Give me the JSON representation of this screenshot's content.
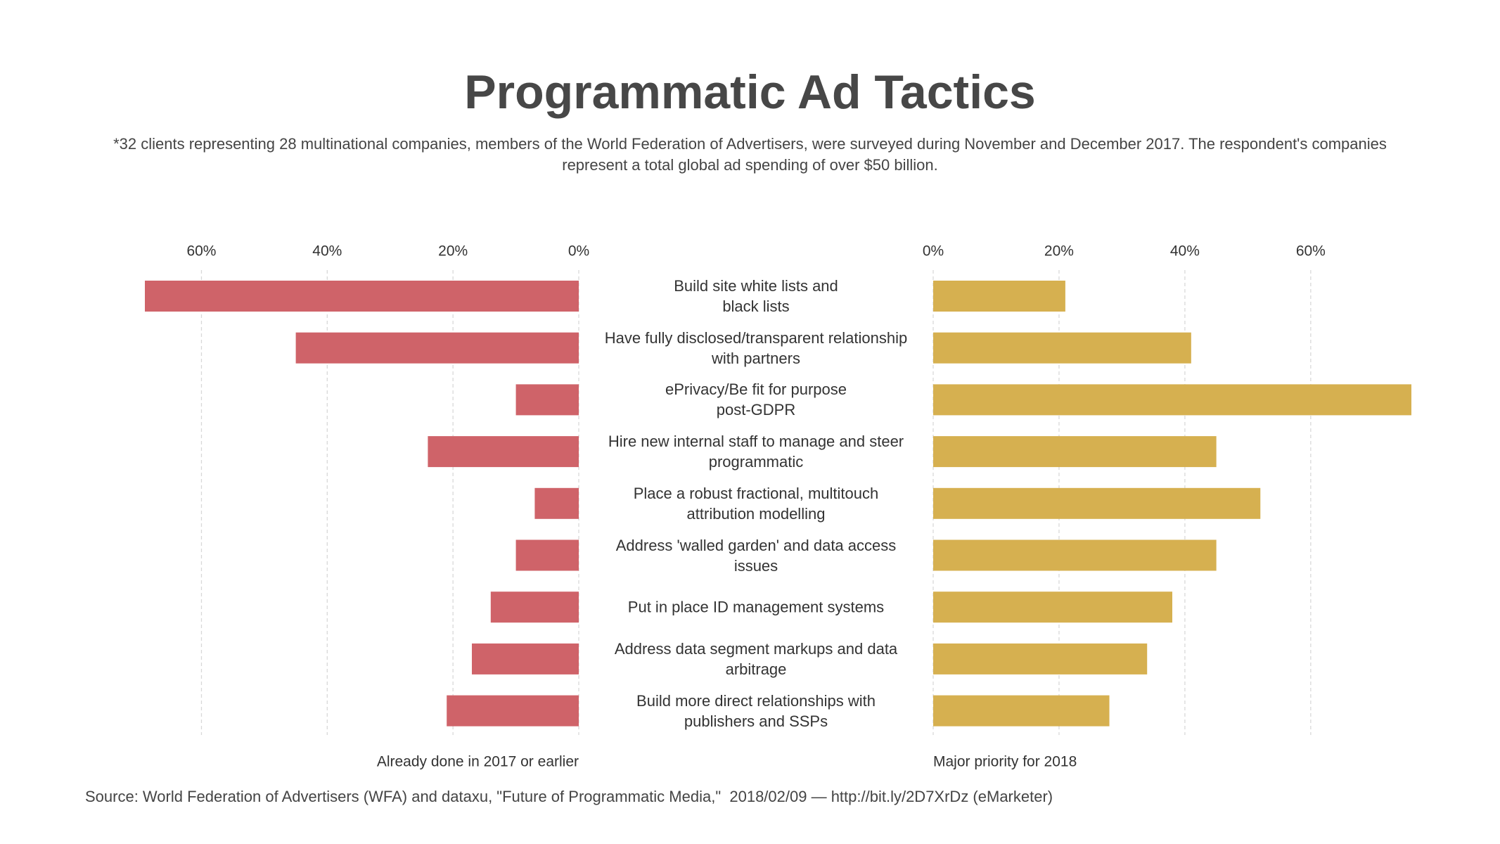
{
  "chart_data": {
    "type": "butterfly",
    "title": "Programmatic Ad Tactics",
    "subtitle": "*32 clients representing 28 multinational companies, members of the World Federation of Advertisers, were surveyed during November and December 2017. The respondent's companies represent a total global ad spending of over $50 billion.",
    "source": "Source: World Federation of Advertisers (WFA) and dataxu, \"Future of Programmatic Media,\"  2018/02/09 — http://bit.ly/2D7XrDz (eMarketer)",
    "categories": [
      "Build site white lists and\nblack lists",
      "Have fully disclosed/transparent relationship\nwith partners",
      "ePrivacy/Be fit for purpose\npost-GDPR",
      "Hire new internal staff to manage and steer\nprogrammatic",
      "Place a robust fractional, multitouch\nattribution modelling",
      "Address 'walled garden' and data access\nissues",
      "Put in place ID management systems",
      "Address data segment markups and data\narbitrage",
      "Build more direct relationships with\npublishers and SSPs"
    ],
    "grid": true,
    "series": [
      {
        "name": "Already done in 2017 or earlier",
        "color": "#cf6369",
        "values": [
          69,
          45,
          10,
          24,
          7,
          10,
          14,
          17,
          21
        ],
        "xlim": [
          0,
          69
        ],
        "xticks": [
          {
            "value": 0,
            "label": "0%"
          },
          {
            "value": 20,
            "label": "20%"
          },
          {
            "value": 40,
            "label": "40%"
          },
          {
            "value": 60,
            "label": "60%"
          }
        ]
      },
      {
        "name": "Major priority for 2018",
        "color": "#d6b050",
        "values": [
          21,
          41,
          76,
          45,
          52,
          45,
          38,
          34,
          28
        ],
        "xlim": [
          0,
          76
        ],
        "xticks": [
          {
            "value": 0,
            "label": "0%"
          },
          {
            "value": 20,
            "label": "20%"
          },
          {
            "value": 40,
            "label": "40%"
          },
          {
            "value": 60,
            "label": "60%"
          }
        ]
      }
    ]
  }
}
